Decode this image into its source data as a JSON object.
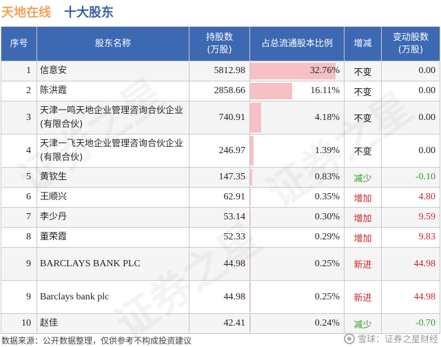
{
  "header": {
    "company": "天地在线",
    "section": "十大股东"
  },
  "table": {
    "columns": [
      "序号",
      "股东名称",
      "持股数\n(万股)",
      "占总流通股本比例",
      "增减",
      "变动股数\n(万股)"
    ],
    "rows": [
      {
        "rank": "1",
        "name": "信意安",
        "shares": "5812.98",
        "ratio": "32.76%",
        "ratio_value": 32.76,
        "change": "不变",
        "change_type": "same",
        "delta": "0.00"
      },
      {
        "rank": "2",
        "name": "陈洪霞",
        "shares": "2858.66",
        "ratio": "16.11%",
        "ratio_value": 16.11,
        "change": "不变",
        "change_type": "same",
        "delta": "0.00"
      },
      {
        "rank": "3",
        "name": "天津一鸣天地企业管理咨询合伙企业(有限合伙)",
        "shares": "740.91",
        "ratio": "4.18%",
        "ratio_value": 4.18,
        "change": "不变",
        "change_type": "same",
        "delta": "0.00"
      },
      {
        "rank": "4",
        "name": "天津一飞天地企业管理咨询合伙企业(有限合伙)",
        "shares": "246.97",
        "ratio": "1.39%",
        "ratio_value": 1.39,
        "change": "不变",
        "change_type": "same",
        "delta": "0.00"
      },
      {
        "rank": "5",
        "name": "黄钦生",
        "shares": "147.35",
        "ratio": "0.83%",
        "ratio_value": 0.83,
        "change": "减少",
        "change_type": "down",
        "delta": "-0.10"
      },
      {
        "rank": "6",
        "name": "王顺兴",
        "shares": "62.91",
        "ratio": "0.35%",
        "ratio_value": 0.35,
        "change": "增加",
        "change_type": "up",
        "delta": "4.80"
      },
      {
        "rank": "7",
        "name": "李少丹",
        "shares": "53.14",
        "ratio": "0.30%",
        "ratio_value": 0.3,
        "change": "增加",
        "change_type": "up",
        "delta": "9.59"
      },
      {
        "rank": "8",
        "name": "董荣霞",
        "shares": "52.33",
        "ratio": "0.29%",
        "ratio_value": 0.29,
        "change": "增加",
        "change_type": "up",
        "delta": "9.83"
      },
      {
        "rank": "9",
        "name": "BARCLAYS BANK PLC",
        "shares": "44.98",
        "ratio": "0.25%",
        "ratio_value": 0.25,
        "change": "新进",
        "change_type": "up",
        "delta": "44.98"
      },
      {
        "rank": "9",
        "name": "Barclays bank plc",
        "shares": "44.98",
        "ratio": "0.25%",
        "ratio_value": 0.25,
        "change": "新进",
        "change_type": "up",
        "delta": "44.98"
      },
      {
        "rank": "10",
        "name": "赵佳",
        "shares": "42.41",
        "ratio": "0.24%",
        "ratio_value": 0.24,
        "change": "减少",
        "change_type": "down",
        "delta": "-0.70"
      }
    ]
  },
  "footer": {
    "source": "数据来源：公开数据整理，仅供参考不构成投资建议",
    "brand": "雪球：证券之星财经"
  },
  "watermark": {
    "text": "证券之星"
  },
  "colors": {
    "header_bg": "#3d69b3",
    "bar": "#f7c0c4",
    "up": "#d32222",
    "down": "#2a9a2a",
    "company": "#f0a35a",
    "section": "#3a5fa8"
  }
}
